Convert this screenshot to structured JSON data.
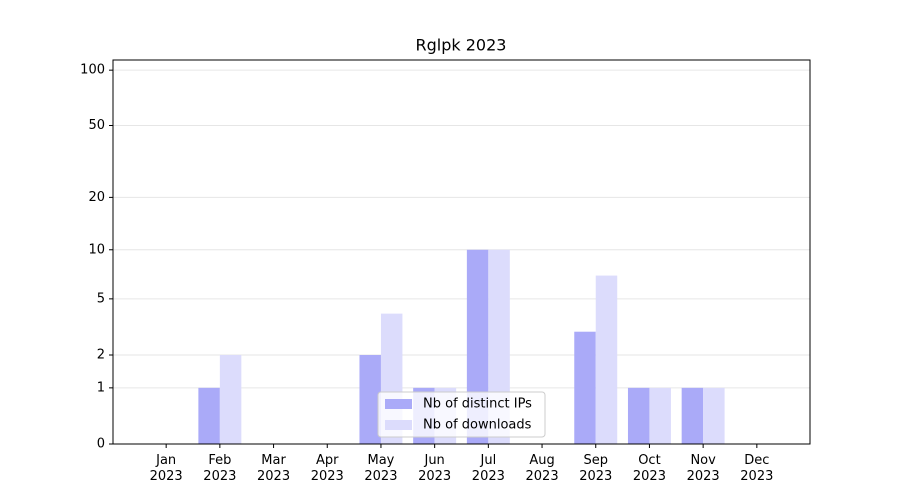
{
  "chart_data": {
    "type": "bar",
    "title": "Rglpk 2023",
    "categories": [
      "Jan\n2023",
      "Feb\n2023",
      "Mar\n2023",
      "Apr\n2023",
      "May\n2023",
      "Jun\n2023",
      "Jul\n2023",
      "Aug\n2023",
      "Sep\n2023",
      "Oct\n2023",
      "Nov\n2023",
      "Dec\n2023"
    ],
    "series": [
      {
        "name": "Nb of distinct IPs",
        "color": "#aaaaf8",
        "values": [
          0,
          1,
          0,
          0,
          2,
          1,
          10,
          0,
          3,
          1,
          1,
          0
        ]
      },
      {
        "name": "Nb of downloads",
        "color": "#dcdcfc",
        "values": [
          0,
          2,
          0,
          0,
          4,
          1,
          10,
          0,
          7,
          1,
          1,
          0
        ]
      }
    ],
    "yscale": "log1p",
    "ylim": [
      0,
      113.5
    ],
    "yticks": [
      0,
      1,
      2,
      5,
      10,
      20,
      50,
      100
    ],
    "grid": true
  }
}
